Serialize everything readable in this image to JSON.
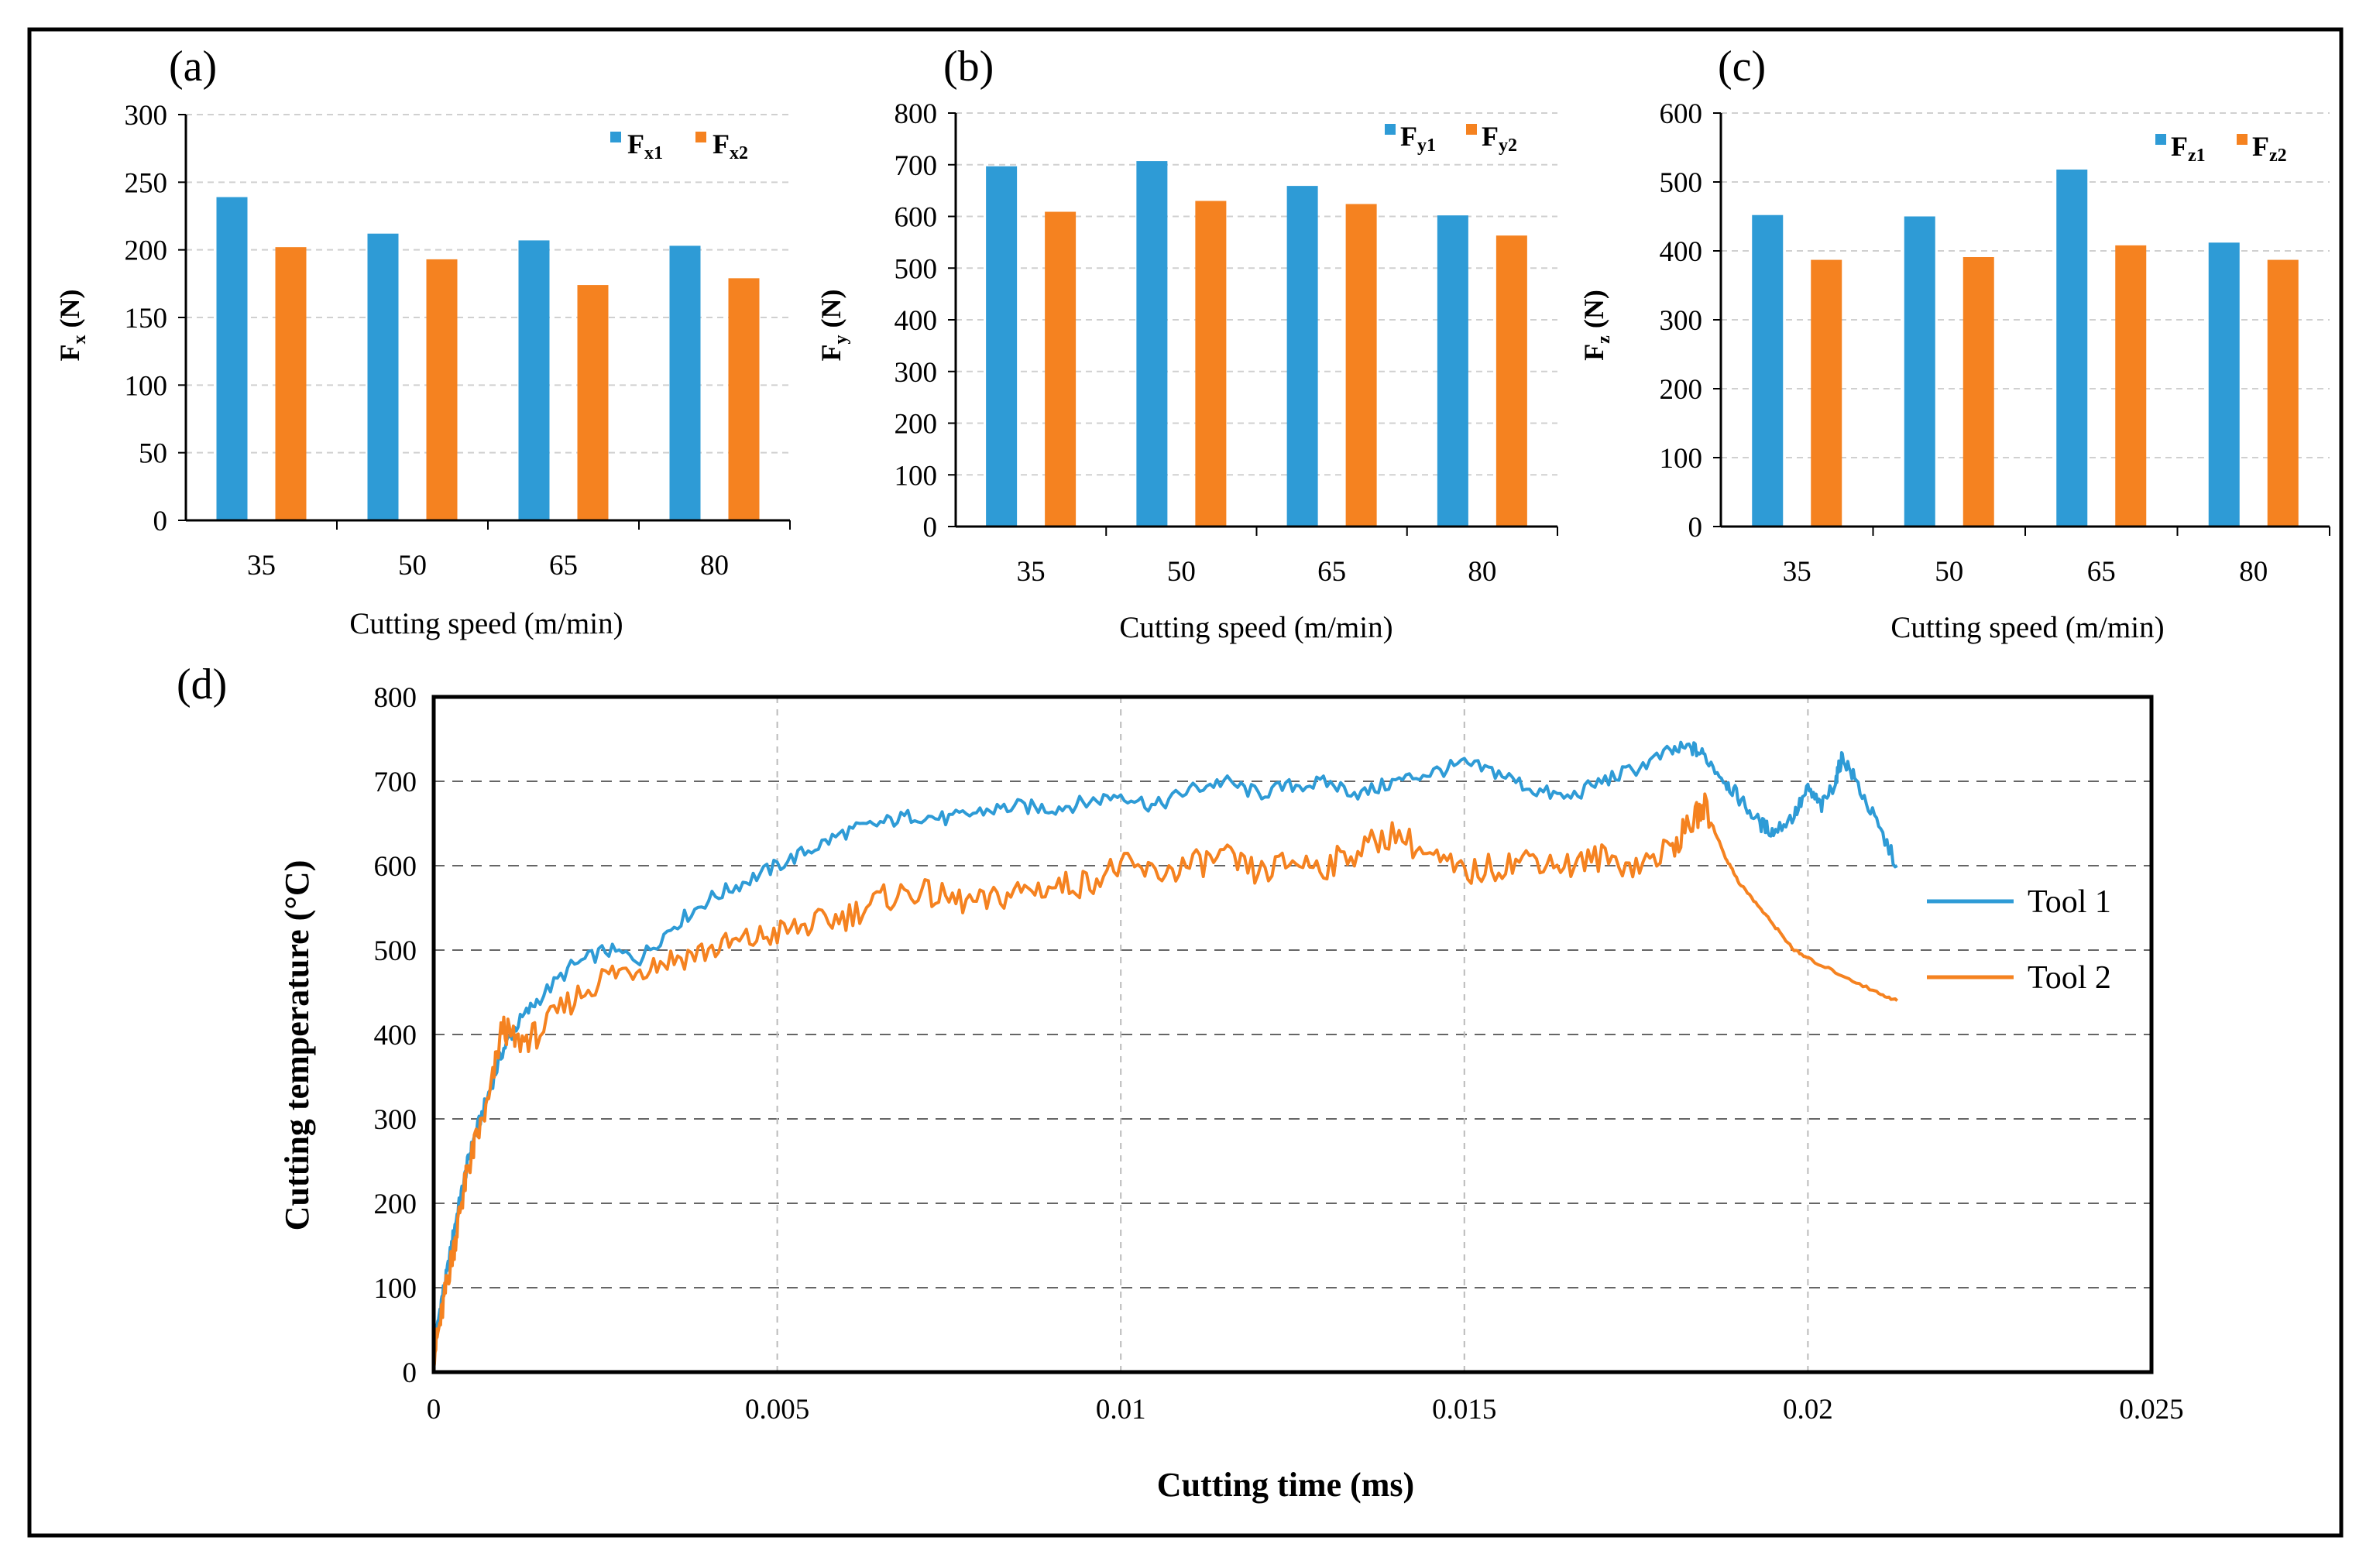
{
  "colors": {
    "series1": "#2E9BD6",
    "series2": "#F58220",
    "grid": "#D0D0D0",
    "axis": "#000000"
  },
  "chart_data": [
    {
      "id": "a",
      "type": "bar",
      "panel_label": "(a)",
      "categories": [
        "35",
        "50",
        "65",
        "80"
      ],
      "series": [
        {
          "name": "Fx1",
          "main": "F",
          "sub": "x1",
          "values": [
            239,
            212,
            207,
            203
          ]
        },
        {
          "name": "Fx2",
          "main": "F",
          "sub": "x2",
          "values": [
            202,
            193,
            174,
            179
          ]
        }
      ],
      "xlabel": "Cutting speed (m/min)",
      "ylabel_main": "F",
      "ylabel_sub": "x",
      "ylabel_unit": " (N)",
      "ylim": [
        0,
        300
      ],
      "yticks": [
        0,
        50,
        100,
        150,
        200,
        250,
        300
      ],
      "legend": "top-right",
      "grid": true
    },
    {
      "id": "b",
      "type": "bar",
      "panel_label": "(b)",
      "categories": [
        "35",
        "50",
        "65",
        "80"
      ],
      "series": [
        {
          "name": "Fy1",
          "main": "F",
          "sub": "y1",
          "values": [
            697,
            707,
            659,
            602
          ]
        },
        {
          "name": "Fy2",
          "main": "F",
          "sub": "y2",
          "values": [
            609,
            630,
            624,
            563
          ]
        }
      ],
      "xlabel": "Cutting speed (m/min)",
      "ylabel_main": "F",
      "ylabel_sub": "y",
      "ylabel_unit": " (N)",
      "ylim": [
        0,
        800
      ],
      "yticks": [
        0,
        100,
        200,
        300,
        400,
        500,
        600,
        700,
        800
      ],
      "legend": "top-right",
      "grid": true
    },
    {
      "id": "c",
      "type": "bar",
      "panel_label": "(c)",
      "categories": [
        "35",
        "50",
        "65",
        "80"
      ],
      "series": [
        {
          "name": "Fz1",
          "main": "F",
          "sub": "z1",
          "values": [
            452,
            450,
            518,
            412
          ]
        },
        {
          "name": "Fz2",
          "main": "F",
          "sub": "z2",
          "values": [
            387,
            391,
            408,
            387
          ]
        }
      ],
      "xlabel": "Cutting speed (m/min)",
      "ylabel_main": "F",
      "ylabel_sub": "z",
      "ylabel_unit": " (N)",
      "ylim": [
        0,
        600
      ],
      "yticks": [
        0,
        100,
        200,
        300,
        400,
        500,
        600
      ],
      "legend": "top-right",
      "grid": true
    },
    {
      "id": "d",
      "type": "line",
      "panel_label": "(d)",
      "xlabel": "Cutting time (ms)",
      "ylabel": "Cutting temperature (°C)",
      "xlim": [
        0,
        0.025
      ],
      "ylim": [
        0,
        800
      ],
      "xticks": [
        "0",
        "0.005",
        "0.01",
        "0.015",
        "0.02",
        "0.025"
      ],
      "yticks": [
        "0",
        "100",
        "200",
        "300",
        "400",
        "500",
        "600",
        "700",
        "800"
      ],
      "legend": "right",
      "grid": true,
      "series": [
        {
          "name": "Tool 1",
          "x": [
            0,
            0.0001,
            0.0002,
            0.0003,
            0.0004,
            0.0005,
            0.0006,
            0.0008,
            0.001,
            0.0012,
            0.0015,
            0.002,
            0.0025,
            0.003,
            0.0035,
            0.004,
            0.0045,
            0.005,
            0.0055,
            0.006,
            0.0065,
            0.007,
            0.0075,
            0.008,
            0.0085,
            0.009,
            0.0095,
            0.01,
            0.0105,
            0.011,
            0.0115,
            0.012,
            0.0125,
            0.013,
            0.0135,
            0.014,
            0.0145,
            0.015,
            0.0155,
            0.016,
            0.0165,
            0.017,
            0.0175,
            0.018,
            0.0183,
            0.0185,
            0.0188,
            0.019,
            0.0193,
            0.0195,
            0.0198,
            0.02,
            0.0202,
            0.0204,
            0.0205,
            0.0207,
            0.021,
            0.0213
          ],
          "y": [
            20,
            80,
            120,
            170,
            210,
            250,
            280,
            330,
            380,
            410,
            440,
            480,
            500,
            490,
            530,
            560,
            580,
            600,
            620,
            640,
            650,
            660,
            655,
            665,
            670,
            668,
            675,
            685,
            670,
            690,
            700,
            685,
            695,
            698,
            685,
            700,
            710,
            720,
            710,
            690,
            680,
            700,
            715,
            735,
            740,
            730,
            700,
            680,
            650,
            640,
            660,
            690,
            670,
            700,
            730,
            700,
            650,
            600
          ]
        },
        {
          "name": "Tool 2",
          "x": [
            0,
            0.0001,
            0.0002,
            0.0003,
            0.0004,
            0.0005,
            0.0006,
            0.0008,
            0.001,
            0.0012,
            0.0015,
            0.002,
            0.0025,
            0.003,
            0.0035,
            0.004,
            0.0045,
            0.005,
            0.0055,
            0.006,
            0.0065,
            0.007,
            0.0075,
            0.008,
            0.0085,
            0.009,
            0.0095,
            0.01,
            0.0105,
            0.011,
            0.0115,
            0.012,
            0.0125,
            0.013,
            0.0135,
            0.014,
            0.0145,
            0.015,
            0.0155,
            0.016,
            0.0165,
            0.017,
            0.0175,
            0.018,
            0.0183,
            0.0185,
            0.0188,
            0.019,
            0.0193,
            0.0195,
            0.0198,
            0.02,
            0.0205,
            0.021,
            0.0213
          ],
          "y": [
            20,
            60,
            110,
            150,
            200,
            240,
            270,
            320,
            410,
            390,
            400,
            440,
            470,
            480,
            490,
            500,
            510,
            520,
            530,
            540,
            560,
            570,
            560,
            555,
            570,
            575,
            580,
            600,
            590,
            600,
            610,
            590,
            605,
            600,
            620,
            640,
            610,
            590,
            600,
            610,
            600,
            610,
            600,
            620,
            650,
            670,
            610,
            580,
            550,
            530,
            500,
            490,
            470,
            450,
            440
          ]
        }
      ]
    }
  ]
}
